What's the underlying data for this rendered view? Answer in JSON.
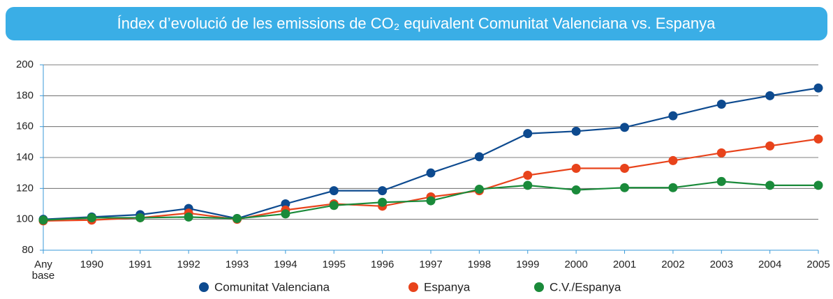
{
  "chart_data": {
    "type": "line",
    "title": "Índex d’evolució de les emissions de CO₂ equivalent Comunitat Valenciana vs. Espanya",
    "categories": [
      "Any base",
      "1990",
      "1991",
      "1992",
      "1993",
      "1994",
      "1995",
      "1996",
      "1997",
      "1998",
      "1999",
      "2000",
      "2001",
      "2002",
      "2003",
      "2004",
      "2005"
    ],
    "series": [
      {
        "name": "Comunitat Valenciana",
        "color": "#0d4a8f",
        "values": [
          100,
          101.5,
          103,
          107,
          100.5,
          110,
          118.5,
          118.5,
          130,
          140.5,
          155.5,
          157,
          159.5,
          167,
          174.5,
          180,
          185
        ]
      },
      {
        "name": "Espanya",
        "color": "#e8431b",
        "values": [
          99,
          99.5,
          101,
          104,
          100,
          106,
          110,
          108.5,
          114.5,
          118.5,
          128.5,
          133,
          133,
          138,
          143,
          147.5,
          152
        ]
      },
      {
        "name": "C.V./Espanya",
        "color": "#1a8a3a",
        "values": [
          99.5,
          101,
          101,
          101.5,
          100.5,
          103.5,
          109,
          111,
          112,
          119.5,
          122,
          119,
          120.5,
          120.5,
          124.5,
          122,
          122
        ]
      }
    ],
    "ylim": [
      80,
      200
    ],
    "yticks": [
      80,
      100,
      120,
      140,
      160,
      180,
      200
    ],
    "grid": true,
    "legend": "bottom"
  }
}
